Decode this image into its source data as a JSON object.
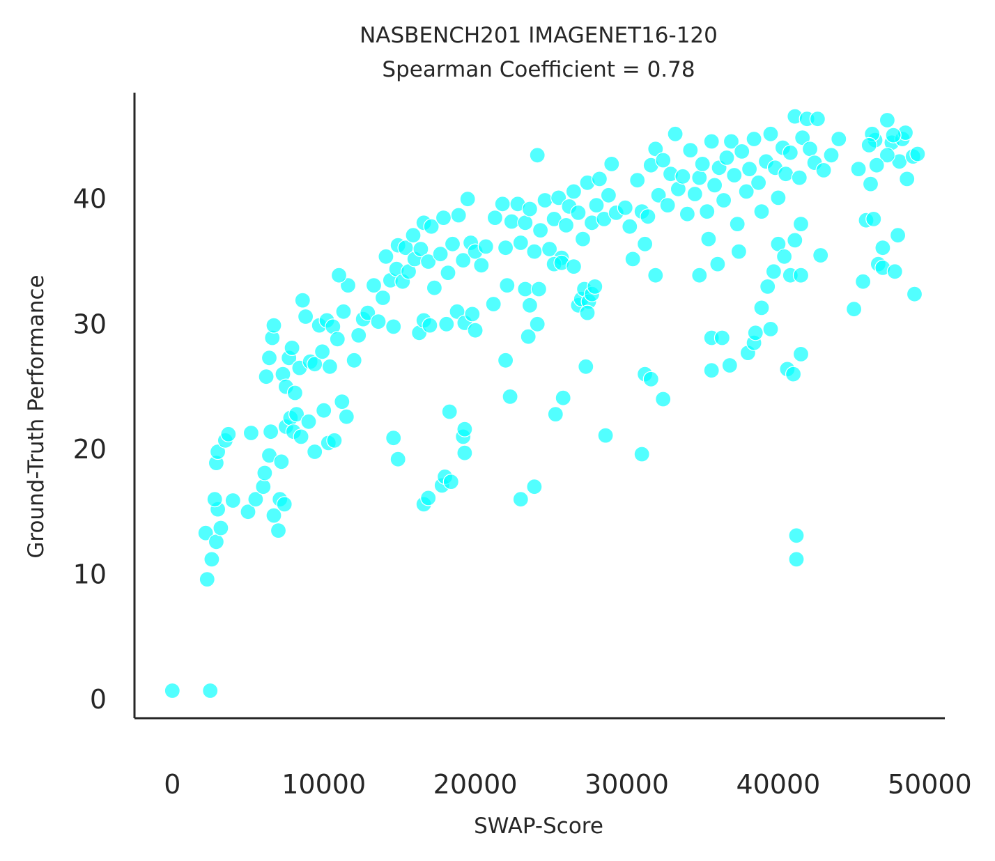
{
  "chart_data": {
    "type": "scatter",
    "title": "NASBENCH201 IMAGENET16-120",
    "subtitle": "Spearman Coefficient = 0.78",
    "xlabel": "SWAP-Score",
    "ylabel": "Ground-Truth Performance",
    "xlim": [
      -2500,
      51000
    ],
    "ylim": [
      -1.5,
      48.5
    ],
    "x_ticks": [
      0,
      10000,
      20000,
      30000,
      40000,
      50000
    ],
    "y_ticks": [
      0,
      10,
      20,
      30,
      40
    ],
    "grid": false,
    "legend": "none",
    "point_color": "#00ffff",
    "series": [
      {
        "points": [
          [
            0,
            0.7
          ],
          [
            2500,
            0.7
          ],
          [
            2300,
            9.6
          ],
          [
            2200,
            13.3
          ],
          [
            2600,
            11.2
          ],
          [
            2900,
            12.6
          ],
          [
            3000,
            15.2
          ],
          [
            2800,
            16.0
          ],
          [
            3200,
            13.7
          ],
          [
            2900,
            18.9
          ],
          [
            3000,
            19.8
          ],
          [
            3500,
            20.7
          ],
          [
            3700,
            21.2
          ],
          [
            4000,
            15.9
          ],
          [
            5000,
            15.0
          ],
          [
            5500,
            16.0
          ],
          [
            5200,
            21.3
          ],
          [
            6000,
            17.0
          ],
          [
            6100,
            18.1
          ],
          [
            6400,
            19.5
          ],
          [
            6500,
            21.4
          ],
          [
            6700,
            14.7
          ],
          [
            7000,
            13.5
          ],
          [
            7100,
            16.0
          ],
          [
            7200,
            19.0
          ],
          [
            7400,
            15.6
          ],
          [
            7500,
            21.8
          ],
          [
            7800,
            22.5
          ],
          [
            8000,
            21.4
          ],
          [
            8200,
            22.8
          ],
          [
            8500,
            21.0
          ],
          [
            9000,
            22.2
          ],
          [
            9400,
            19.8
          ],
          [
            10000,
            23.1
          ],
          [
            10300,
            20.5
          ],
          [
            10700,
            20.7
          ],
          [
            11200,
            23.8
          ],
          [
            11500,
            22.6
          ],
          [
            6200,
            25.8
          ],
          [
            6400,
            27.3
          ],
          [
            6600,
            28.9
          ],
          [
            6700,
            29.9
          ],
          [
            7300,
            26.0
          ],
          [
            7500,
            25.0
          ],
          [
            7700,
            27.3
          ],
          [
            7900,
            28.1
          ],
          [
            8100,
            24.5
          ],
          [
            8400,
            26.5
          ],
          [
            8800,
            30.6
          ],
          [
            8600,
            31.9
          ],
          [
            9100,
            27.0
          ],
          [
            9400,
            26.8
          ],
          [
            9700,
            29.9
          ],
          [
            9900,
            27.8
          ],
          [
            10200,
            30.3
          ],
          [
            10400,
            26.6
          ],
          [
            10600,
            29.8
          ],
          [
            10900,
            28.8
          ],
          [
            11300,
            31.0
          ],
          [
            11600,
            33.1
          ],
          [
            11000,
            33.9
          ],
          [
            12000,
            27.1
          ],
          [
            12300,
            29.1
          ],
          [
            12600,
            30.4
          ],
          [
            12900,
            30.9
          ],
          [
            13300,
            33.1
          ],
          [
            13600,
            30.2
          ],
          [
            13900,
            32.1
          ],
          [
            14100,
            35.4
          ],
          [
            14400,
            33.5
          ],
          [
            14600,
            29.8
          ],
          [
            14800,
            34.4
          ],
          [
            14900,
            36.3
          ],
          [
            15200,
            33.4
          ],
          [
            15400,
            36.1
          ],
          [
            15600,
            34.2
          ],
          [
            15900,
            37.1
          ],
          [
            16000,
            35.2
          ],
          [
            16400,
            36.0
          ],
          [
            16600,
            38.1
          ],
          [
            16900,
            35.0
          ],
          [
            17100,
            37.8
          ],
          [
            17300,
            32.9
          ],
          [
            17700,
            35.6
          ],
          [
            17900,
            38.5
          ],
          [
            18200,
            34.1
          ],
          [
            18500,
            36.4
          ],
          [
            18900,
            38.7
          ],
          [
            19200,
            35.1
          ],
          [
            19500,
            40.0
          ],
          [
            19700,
            36.5
          ],
          [
            20000,
            35.8
          ],
          [
            20400,
            34.7
          ],
          [
            20700,
            36.2
          ],
          [
            16300,
            29.3
          ],
          [
            16600,
            30.3
          ],
          [
            17000,
            29.9
          ],
          [
            18100,
            30.0
          ],
          [
            18800,
            31.0
          ],
          [
            19300,
            30.1
          ],
          [
            19800,
            30.8
          ],
          [
            20000,
            29.5
          ],
          [
            21200,
            31.6
          ],
          [
            22000,
            27.1
          ],
          [
            22300,
            24.2
          ],
          [
            14600,
            20.9
          ],
          [
            14900,
            19.2
          ],
          [
            16600,
            15.6
          ],
          [
            16900,
            16.1
          ],
          [
            17800,
            17.1
          ],
          [
            18000,
            17.8
          ],
          [
            18400,
            17.4
          ],
          [
            18300,
            23.0
          ],
          [
            19200,
            21.0
          ],
          [
            19300,
            21.6
          ],
          [
            19300,
            19.7
          ],
          [
            21300,
            38.5
          ],
          [
            21800,
            39.6
          ],
          [
            22000,
            36.1
          ],
          [
            22400,
            38.2
          ],
          [
            22800,
            39.6
          ],
          [
            23000,
            36.5
          ],
          [
            23300,
            38.1
          ],
          [
            23600,
            39.2
          ],
          [
            23900,
            35.8
          ],
          [
            24100,
            43.5
          ],
          [
            24300,
            37.5
          ],
          [
            24600,
            39.9
          ],
          [
            24900,
            36.0
          ],
          [
            25200,
            38.4
          ],
          [
            25500,
            40.1
          ],
          [
            25700,
            35.3
          ],
          [
            26000,
            37.9
          ],
          [
            26200,
            39.4
          ],
          [
            26500,
            40.6
          ],
          [
            26800,
            38.9
          ],
          [
            27100,
            36.8
          ],
          [
            27400,
            41.3
          ],
          [
            27700,
            38.1
          ],
          [
            28000,
            39.5
          ],
          [
            28200,
            41.6
          ],
          [
            28500,
            38.4
          ],
          [
            28800,
            40.3
          ],
          [
            29000,
            42.8
          ],
          [
            29300,
            38.9
          ],
          [
            26800,
            31.5
          ],
          [
            27000,
            32.0
          ],
          [
            27200,
            32.8
          ],
          [
            27500,
            31.8
          ],
          [
            27700,
            32.4
          ],
          [
            27900,
            33.0
          ],
          [
            27400,
            30.9
          ],
          [
            22100,
            33.1
          ],
          [
            23300,
            32.8
          ],
          [
            23600,
            31.5
          ],
          [
            24200,
            32.8
          ],
          [
            24100,
            30.0
          ],
          [
            23500,
            29.0
          ],
          [
            25200,
            34.8
          ],
          [
            25700,
            34.9
          ],
          [
            26500,
            34.6
          ],
          [
            27300,
            26.6
          ],
          [
            25800,
            24.1
          ],
          [
            25300,
            22.8
          ],
          [
            28600,
            21.1
          ],
          [
            23000,
            16.0
          ],
          [
            23900,
            17.0
          ],
          [
            29900,
            39.3
          ],
          [
            30200,
            37.8
          ],
          [
            30400,
            35.2
          ],
          [
            30700,
            41.5
          ],
          [
            31000,
            39.0
          ],
          [
            31200,
            36.4
          ],
          [
            31400,
            38.6
          ],
          [
            31600,
            42.7
          ],
          [
            31900,
            44.0
          ],
          [
            32100,
            40.3
          ],
          [
            32400,
            43.1
          ],
          [
            32700,
            39.5
          ],
          [
            32900,
            42.0
          ],
          [
            33200,
            45.2
          ],
          [
            33400,
            40.8
          ],
          [
            33700,
            41.8
          ],
          [
            34000,
            38.8
          ],
          [
            34200,
            43.9
          ],
          [
            34500,
            40.4
          ],
          [
            34800,
            41.7
          ],
          [
            35000,
            42.8
          ],
          [
            35300,
            39.0
          ],
          [
            35600,
            44.6
          ],
          [
            35800,
            41.1
          ],
          [
            36100,
            42.5
          ],
          [
            36400,
            39.9
          ],
          [
            36600,
            43.3
          ],
          [
            36900,
            44.6
          ],
          [
            37100,
            41.9
          ],
          [
            37300,
            38.0
          ],
          [
            37600,
            43.8
          ],
          [
            37900,
            40.6
          ],
          [
            38100,
            42.4
          ],
          [
            38400,
            44.8
          ],
          [
            38700,
            41.3
          ],
          [
            38900,
            39.0
          ],
          [
            39200,
            43.0
          ],
          [
            39500,
            45.2
          ],
          [
            39800,
            42.5
          ],
          [
            40000,
            40.1
          ],
          [
            40300,
            44.1
          ],
          [
            40500,
            42.0
          ],
          [
            40800,
            43.7
          ],
          [
            41100,
            46.6
          ],
          [
            41400,
            41.7
          ],
          [
            41600,
            44.9
          ],
          [
            41900,
            46.4
          ],
          [
            42100,
            44.0
          ],
          [
            42400,
            42.9
          ],
          [
            42600,
            46.4
          ],
          [
            43000,
            42.3
          ],
          [
            43500,
            43.5
          ],
          [
            44000,
            44.8
          ],
          [
            31900,
            33.9
          ],
          [
            31200,
            26.0
          ],
          [
            31600,
            25.6
          ],
          [
            32400,
            24.0
          ],
          [
            31000,
            19.6
          ],
          [
            34800,
            33.9
          ],
          [
            35400,
            36.8
          ],
          [
            36000,
            34.8
          ],
          [
            35600,
            28.9
          ],
          [
            36300,
            28.9
          ],
          [
            35600,
            26.3
          ],
          [
            36800,
            26.7
          ],
          [
            37400,
            35.8
          ],
          [
            38000,
            27.7
          ],
          [
            38400,
            28.5
          ],
          [
            38500,
            29.3
          ],
          [
            38900,
            31.3
          ],
          [
            39300,
            33.0
          ],
          [
            39700,
            34.2
          ],
          [
            39500,
            29.6
          ],
          [
            40000,
            36.4
          ],
          [
            40400,
            35.4
          ],
          [
            40800,
            33.9
          ],
          [
            41100,
            36.7
          ],
          [
            41500,
            38.0
          ],
          [
            41500,
            33.9
          ],
          [
            40600,
            26.4
          ],
          [
            41500,
            27.6
          ],
          [
            41000,
            26.0
          ],
          [
            41200,
            13.1
          ],
          [
            41200,
            11.2
          ],
          [
            42800,
            35.5
          ],
          [
            45000,
            31.2
          ],
          [
            45600,
            33.4
          ],
          [
            45300,
            42.4
          ],
          [
            45800,
            38.3
          ],
          [
            46100,
            41.2
          ],
          [
            46300,
            38.4
          ],
          [
            46400,
            44.7
          ],
          [
            46600,
            34.8
          ],
          [
            46900,
            36.1
          ],
          [
            46900,
            34.5
          ],
          [
            47200,
            46.3
          ],
          [
            47500,
            44.5
          ],
          [
            47700,
            34.2
          ],
          [
            47900,
            37.1
          ],
          [
            48000,
            43.0
          ],
          [
            48200,
            44.8
          ],
          [
            48500,
            41.6
          ],
          [
            48900,
            43.4
          ],
          [
            49000,
            32.4
          ],
          [
            47200,
            43.5
          ],
          [
            46200,
            45.2
          ],
          [
            46500,
            42.7
          ],
          [
            48400,
            45.3
          ],
          [
            47600,
            45.1
          ],
          [
            46000,
            44.3
          ],
          [
            49200,
            43.6
          ]
        ]
      }
    ]
  }
}
